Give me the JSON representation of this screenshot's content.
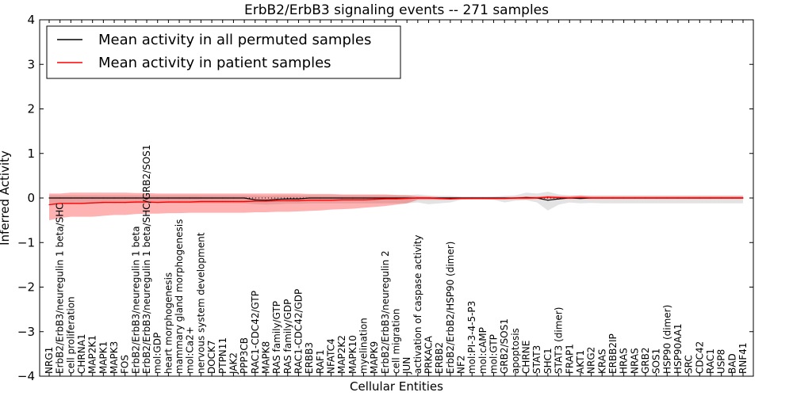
{
  "chart_data": {
    "type": "line",
    "title": "ErbB2/ErbB3 signaling events -- 271 samples",
    "xlabel": "Cellular Entities",
    "ylabel": "Inferred Activity",
    "ylim": [
      -4,
      4
    ],
    "yticks": [
      -4,
      -3,
      -2,
      -1,
      0,
      1,
      2,
      3,
      4
    ],
    "grid": false,
    "legend_position": "top-left",
    "categories": [
      "NRG1",
      "ErbB2/ErbB3/neuregulin 1 beta/SHC",
      "cell proliferation",
      "CHRNA1",
      "MAP2K1",
      "MAPK1",
      "MAPK3",
      "FOS",
      "ErbB2/ErbB3/neuregulin 1 beta",
      "ErbB2/ErbB3/neuregulin 1 beta/SHC/GRB2/SOS1",
      "mol:GDP",
      "heart morphogenesis",
      "mammary gland morphogenesis",
      "mol:Ca2+",
      "nervous system development",
      "DOCK7",
      "PTPN11",
      "JAK2",
      "PPP3CB",
      "RAC1-CDC42/GTP",
      "MAPK8",
      "RAS family/GTP",
      "RAS family/GDP",
      "RAC1-CDC42/GDP",
      "ERBB3",
      "RAF1",
      "NFATC4",
      "MAP2K2",
      "MAPK10",
      "myelination",
      "MAPK9",
      "ErbB2/ErbB3/neuregulin 2",
      "cell migration",
      "JUN",
      "activation of caspase activity",
      "PRKACA",
      "ERBB2",
      "ErbB2/ErbB2/HSP90 (dimer)",
      "NF2",
      "mol:PI-3-4-5-P3",
      "mol:cAMP",
      "mol:GTP",
      "GRB2/SOS1",
      "apoptosis",
      "CHRNE",
      "STAT3",
      "SHC1",
      "STAT3 (dimer)",
      "FRAP1",
      "AKT1",
      "NRG2",
      "KRAS",
      "ERBB2IP",
      "HRAS",
      "NRAS",
      "GRB2",
      "SOS1",
      "HSP90 (dimer)",
      "HSP90AA1",
      "SRC",
      "CDC42",
      "RAC1",
      "USP8",
      "BAD",
      "RNF41"
    ],
    "series": [
      {
        "name": "Mean activity in all permuted samples",
        "color": "#000000",
        "values": [
          0,
          0,
          0,
          0,
          0,
          0,
          0,
          0,
          0,
          0,
          0,
          0,
          0,
          0,
          0,
          0,
          0,
          0,
          0,
          -0.04,
          -0.05,
          -0.03,
          -0.02,
          -0.02,
          0,
          0,
          0,
          0,
          0,
          0,
          0,
          0,
          0,
          0,
          0,
          0,
          0,
          0,
          0,
          0,
          0,
          0,
          0,
          0,
          0.01,
          0,
          -0.05,
          -0.02,
          0,
          -0.01,
          0,
          0,
          0,
          0,
          0,
          0,
          0,
          0,
          0,
          0,
          0,
          0,
          0,
          0,
          0
        ],
        "band_lower": [
          -0.12,
          -0.12,
          -0.12,
          -0.12,
          -0.12,
          -0.12,
          -0.12,
          -0.12,
          -0.12,
          -0.12,
          -0.12,
          -0.12,
          -0.12,
          -0.12,
          -0.12,
          -0.12,
          -0.12,
          -0.12,
          -0.12,
          -0.14,
          -0.15,
          -0.14,
          -0.13,
          -0.13,
          -0.12,
          -0.12,
          -0.12,
          -0.12,
          -0.12,
          -0.12,
          -0.12,
          -0.12,
          -0.12,
          -0.12,
          -0.1,
          -0.14,
          -0.12,
          -0.1,
          -0.04,
          -0.03,
          -0.03,
          -0.04,
          -0.1,
          -0.06,
          -0.05,
          -0.1,
          -0.28,
          -0.15,
          -0.1,
          -0.12,
          -0.11,
          -0.12,
          -0.12,
          -0.12,
          -0.12,
          -0.12,
          -0.12,
          -0.12,
          -0.12,
          -0.12,
          -0.12,
          -0.12,
          -0.12,
          -0.12,
          -0.12
        ],
        "band_upper": [
          0.06,
          0.06,
          0.06,
          0.06,
          0.06,
          0.06,
          0.06,
          0.06,
          0.06,
          0.06,
          0.06,
          0.06,
          0.06,
          0.06,
          0.06,
          0.06,
          0.06,
          0.06,
          0.06,
          0.06,
          0.05,
          0.06,
          0.06,
          0.06,
          0.06,
          0.06,
          0.06,
          0.06,
          0.06,
          0.06,
          0.06,
          0.06,
          0.06,
          0.07,
          0.08,
          0.06,
          0.05,
          0.05,
          0.03,
          0.03,
          0.03,
          0.03,
          0.05,
          0.06,
          0.12,
          0.1,
          0.14,
          0.08,
          0.06,
          0.05,
          0.06,
          0.06,
          0.06,
          0.06,
          0.06,
          0.06,
          0.06,
          0.06,
          0.06,
          0.06,
          0.06,
          0.06,
          0.06,
          0.06,
          0.06
        ]
      },
      {
        "name": "Mean activity in patient samples",
        "color": "#ff0000",
        "values": [
          -0.15,
          -0.12,
          -0.12,
          -0.12,
          -0.11,
          -0.1,
          -0.1,
          -0.1,
          -0.09,
          -0.09,
          -0.1,
          -0.09,
          -0.09,
          -0.09,
          -0.08,
          -0.08,
          -0.08,
          -0.08,
          -0.08,
          -0.07,
          -0.07,
          -0.06,
          -0.06,
          -0.06,
          -0.05,
          -0.05,
          -0.05,
          -0.04,
          -0.04,
          -0.04,
          -0.03,
          -0.02,
          -0.02,
          -0.01,
          0,
          0,
          -0.01,
          -0.02,
          -0.01,
          -0.01,
          -0.01,
          -0.01,
          -0.01,
          0,
          0,
          0,
          0.02,
          0.01,
          0,
          0.01,
          0,
          0,
          0,
          0,
          0,
          0,
          0,
          0,
          0,
          0,
          0,
          0,
          0,
          0,
          0
        ],
        "band_lower": [
          -0.5,
          -0.45,
          -0.42,
          -0.42,
          -0.42,
          -0.4,
          -0.38,
          -0.38,
          -0.36,
          -0.35,
          -0.35,
          -0.34,
          -0.34,
          -0.33,
          -0.33,
          -0.33,
          -0.33,
          -0.33,
          -0.33,
          -0.32,
          -0.32,
          -0.31,
          -0.31,
          -0.3,
          -0.29,
          -0.28,
          -0.26,
          -0.25,
          -0.24,
          -0.22,
          -0.2,
          -0.18,
          -0.15,
          -0.12,
          -0.04,
          -0.04,
          -0.04,
          -0.04,
          -0.03,
          -0.03,
          -0.03,
          -0.03,
          -0.03,
          -0.03,
          -0.03,
          -0.02,
          -0.02,
          -0.02,
          -0.02,
          -0.02,
          -0.02,
          -0.02,
          -0.02,
          -0.02,
          -0.02,
          -0.02,
          -0.02,
          -0.02,
          -0.02,
          -0.02,
          -0.02,
          -0.02,
          -0.02,
          -0.02,
          -0.02
        ],
        "band_upper": [
          0.1,
          0.1,
          0.12,
          0.12,
          0.12,
          0.12,
          0.12,
          0.12,
          0.11,
          0.11,
          0.1,
          0.1,
          0.1,
          0.1,
          0.1,
          0.1,
          0.1,
          0.1,
          0.1,
          0.1,
          0.1,
          0.1,
          0.1,
          0.1,
          0.09,
          0.09,
          0.09,
          0.08,
          0.08,
          0.08,
          0.08,
          0.08,
          0.07,
          0.06,
          0.04,
          0.03,
          0.02,
          0.02,
          0.02,
          0.02,
          0.02,
          0.02,
          0.02,
          0.02,
          0.03,
          0.03,
          0.05,
          0.04,
          0.04,
          0.06,
          0.04,
          0.04,
          0.04,
          0.04,
          0.04,
          0.04,
          0.04,
          0.04,
          0.04,
          0.04,
          0.04,
          0.04,
          0.04,
          0.04,
          0.04
        ]
      }
    ]
  }
}
